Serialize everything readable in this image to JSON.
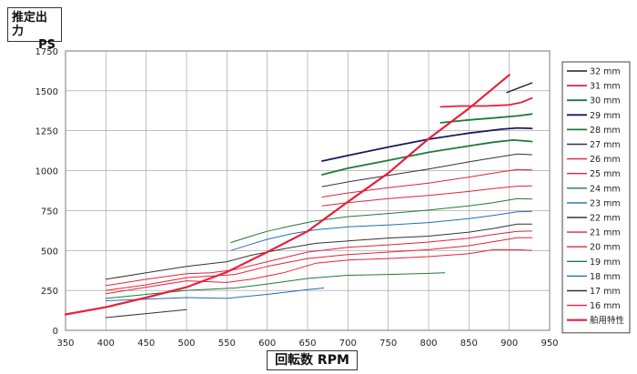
{
  "chart_data": {
    "type": "line",
    "ylabel": [
      "推定出力",
      "PS"
    ],
    "xlabel": "回転数 RPM",
    "xlim": [
      350,
      950
    ],
    "ylim": [
      0,
      1750
    ],
    "xticks": [
      350,
      400,
      450,
      500,
      550,
      600,
      650,
      700,
      750,
      800,
      850,
      900,
      950
    ],
    "yticks": [
      0,
      250,
      500,
      750,
      1000,
      1250,
      1500,
      1750
    ],
    "grid": true,
    "legend_position": "right",
    "series": [
      {
        "name": "32 mm",
        "color": "#1a1a1a",
        "width": 1.4,
        "x": [
          897,
          928
        ],
        "y": [
          1490,
          1550
        ]
      },
      {
        "name": "31 mm",
        "color": "#e8203a",
        "width": 1.8,
        "x": [
          815,
          840,
          870,
          900,
          915,
          928
        ],
        "y": [
          1400,
          1405,
          1405,
          1412,
          1428,
          1455
        ]
      },
      {
        "name": "30 mm",
        "color": "#1f7a3a",
        "width": 1.8,
        "x": [
          815,
          850,
          880,
          910,
          928
        ],
        "y": [
          1300,
          1318,
          1330,
          1343,
          1355
        ]
      },
      {
        "name": "29 mm",
        "color": "#1a1a5e",
        "width": 1.8,
        "x": [
          668,
          700,
          750,
          800,
          850,
          890,
          910,
          928
        ],
        "y": [
          1060,
          1095,
          1148,
          1197,
          1235,
          1260,
          1268,
          1265
        ]
      },
      {
        "name": "28 mm",
        "color": "#1f7a3a",
        "width": 1.8,
        "x": [
          668,
          700,
          750,
          800,
          850,
          880,
          905,
          928
        ],
        "y": [
          975,
          1015,
          1065,
          1115,
          1155,
          1178,
          1192,
          1183
        ]
      },
      {
        "name": "27 mm",
        "color": "#333333",
        "width": 1.0,
        "x": [
          668,
          700,
          750,
          800,
          850,
          880,
          910,
          928
        ],
        "y": [
          900,
          930,
          970,
          1010,
          1055,
          1080,
          1105,
          1100
        ]
      },
      {
        "name": "26 mm",
        "color": "#e8203a",
        "width": 1.0,
        "x": [
          668,
          700,
          750,
          800,
          850,
          880,
          910,
          928
        ],
        "y": [
          835,
          860,
          893,
          922,
          960,
          985,
          1008,
          1005
        ]
      },
      {
        "name": "25 mm",
        "color": "#e8203a",
        "width": 1.0,
        "x": [
          668,
          700,
          750,
          800,
          850,
          880,
          910,
          928
        ],
        "y": [
          780,
          800,
          825,
          845,
          870,
          888,
          903,
          905
        ]
      },
      {
        "name": "24 mm",
        "color": "#1f7a3a",
        "width": 1.0,
        "x": [
          555,
          580,
          600,
          630,
          660,
          700,
          750,
          800,
          850,
          880,
          910,
          928
        ],
        "y": [
          550,
          590,
          620,
          655,
          685,
          712,
          732,
          753,
          780,
          800,
          825,
          822
        ]
      },
      {
        "name": "23 mm",
        "color": "#1e6fb8",
        "width": 1.0,
        "x": [
          555,
          580,
          600,
          630,
          660,
          700,
          750,
          800,
          850,
          880,
          910,
          928
        ],
        "y": [
          500,
          540,
          570,
          605,
          630,
          648,
          660,
          675,
          700,
          720,
          743,
          745
        ]
      },
      {
        "name": "22 mm",
        "color": "#333333",
        "width": 1.0,
        "x": [
          400,
          450,
          500,
          550,
          580,
          620,
          660,
          700,
          750,
          800,
          850,
          880,
          910,
          928
        ],
        "y": [
          320,
          360,
          400,
          430,
          470,
          510,
          545,
          560,
          578,
          590,
          615,
          638,
          665,
          665
        ]
      },
      {
        "name": "21 mm",
        "color": "#e8203a",
        "width": 1.0,
        "x": [
          400,
          450,
          500,
          530,
          560,
          600,
          650,
          700,
          750,
          800,
          850,
          880,
          910,
          928
        ],
        "y": [
          280,
          320,
          355,
          360,
          380,
          430,
          490,
          520,
          535,
          553,
          577,
          600,
          620,
          622
        ]
      },
      {
        "name": "20 mm",
        "color": "#e8203a",
        "width": 1.0,
        "x": [
          400,
          450,
          500,
          530,
          560,
          600,
          650,
          700,
          750,
          800,
          850,
          880,
          910,
          928
        ],
        "y": [
          250,
          285,
          330,
          340,
          350,
          400,
          450,
          475,
          490,
          505,
          530,
          555,
          580,
          580
        ]
      },
      {
        "name": "19 mm",
        "color": "#1f7a3a",
        "width": 1.0,
        "x": [
          400,
          450,
          500,
          560,
          600,
          650,
          700,
          750,
          800,
          820
        ],
        "y": [
          200,
          225,
          250,
          265,
          290,
          325,
          345,
          350,
          357,
          360
        ]
      },
      {
        "name": "18 mm",
        "color": "#1e6fb8",
        "width": 1.0,
        "x": [
          400,
          450,
          500,
          550,
          600,
          650,
          670
        ],
        "y": [
          185,
          195,
          205,
          200,
          225,
          255,
          265
        ]
      },
      {
        "name": "17 mm",
        "color": "#333333",
        "width": 1.0,
        "x": [
          400,
          450,
          500
        ],
        "y": [
          80,
          105,
          130
        ]
      },
      {
        "name": "16 mm",
        "color": "#e8203a",
        "width": 1.0,
        "x": [
          400,
          450,
          500,
          550,
          580,
          620,
          660,
          700,
          750,
          800,
          850,
          880,
          910,
          928
        ],
        "y": [
          230,
          270,
          310,
          300,
          320,
          360,
          420,
          440,
          450,
          462,
          480,
          505,
          505,
          500
        ]
      },
      {
        "name": "舶用特性",
        "color": "#e8203a",
        "width": 2.2,
        "x": [
          350,
          400,
          450,
          500,
          550,
          600,
          650,
          700,
          750,
          800,
          850,
          900
        ],
        "y": [
          100,
          145,
          205,
          270,
          365,
          490,
          620,
          805,
          985,
          1200,
          1390,
          1600
        ]
      }
    ]
  }
}
